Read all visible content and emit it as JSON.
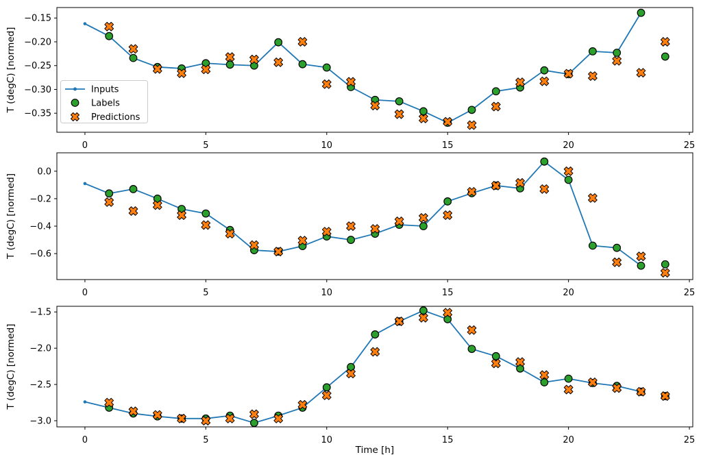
{
  "figure": {
    "background": "#ffffff",
    "xlabel": "Time [h]",
    "ylabel": "T (degC) [normed]",
    "colors": {
      "inputs_line": "#1f77b4",
      "labels_marker": "#2ca02c",
      "predictions_marker": "#ff7f0e",
      "marker_edge": "#000000",
      "spine": "#000000",
      "tick_text": "#000000",
      "legend_border": "#cccccc",
      "legend_fill": "#ffffff"
    },
    "legend": {
      "entries": [
        {
          "label": "Inputs",
          "glyph": "line-dot-glyph",
          "color": "#1f77b4"
        },
        {
          "label": "Labels",
          "glyph": "circle-glyph",
          "color": "#2ca02c"
        },
        {
          "label": "Predictions",
          "glyph": "x-glyph",
          "color": "#ff7f0e"
        }
      ]
    }
  },
  "chart_data": [
    {
      "type": "line",
      "title": "",
      "xlabel": "",
      "ylabel": "T (degC) [normed]",
      "xlim": [
        -1.16,
        25.14
      ],
      "ylim": [
        -0.39,
        -0.128
      ],
      "xticks": [
        0,
        5,
        10,
        15,
        20,
        25
      ],
      "xtick_labels": [
        "0",
        "5",
        "10",
        "15",
        "20",
        "25"
      ],
      "yticks": [
        -0.15,
        -0.2,
        -0.25,
        -0.3,
        -0.35
      ],
      "ytick_labels": [
        "−0.15",
        "−0.20",
        "−0.25",
        "−0.30",
        "−0.35"
      ],
      "grid": false,
      "legend": true,
      "legend_position": "lower-left",
      "series": [
        {
          "name": "Inputs",
          "marker": "dot-line",
          "color": "#1f77b4",
          "x": [
            0,
            1,
            2,
            3,
            4,
            5,
            6,
            7,
            8,
            9,
            10,
            11,
            12,
            13,
            14,
            15,
            16,
            17,
            18,
            19,
            20,
            21,
            22,
            23
          ],
          "y": [
            -0.162,
            -0.188,
            -0.234,
            -0.253,
            -0.256,
            -0.245,
            -0.248,
            -0.25,
            -0.201,
            -0.247,
            -0.254,
            -0.295,
            -0.322,
            -0.325,
            -0.346,
            -0.37,
            -0.343,
            -0.304,
            -0.296,
            -0.26,
            -0.268,
            -0.22,
            -0.223,
            -0.139
          ]
        },
        {
          "name": "Labels",
          "marker": "circle",
          "color": "#2ca02c",
          "x": [
            1,
            2,
            3,
            4,
            5,
            6,
            7,
            8,
            9,
            10,
            11,
            12,
            13,
            14,
            15,
            16,
            17,
            18,
            19,
            20,
            21,
            22,
            23,
            24
          ],
          "y": [
            -0.188,
            -0.234,
            -0.253,
            -0.256,
            -0.245,
            -0.248,
            -0.25,
            -0.201,
            -0.247,
            -0.254,
            -0.295,
            -0.322,
            -0.325,
            -0.346,
            -0.37,
            -0.343,
            -0.304,
            -0.296,
            -0.26,
            -0.268,
            -0.22,
            -0.223,
            -0.139,
            -0.231
          ]
        },
        {
          "name": "Predictions",
          "marker": "X",
          "color": "#ff7f0e",
          "x": [
            1,
            2,
            3,
            4,
            5,
            6,
            7,
            8,
            9,
            10,
            11,
            12,
            13,
            14,
            15,
            16,
            17,
            18,
            19,
            20,
            21,
            22,
            23,
            24
          ],
          "y": [
            -0.168,
            -0.215,
            -0.257,
            -0.266,
            -0.258,
            -0.232,
            -0.237,
            -0.243,
            -0.2,
            -0.289,
            -0.284,
            -0.334,
            -0.352,
            -0.361,
            -0.368,
            -0.375,
            -0.336,
            -0.285,
            -0.283,
            -0.267,
            -0.272,
            -0.24,
            -0.265,
            -0.2
          ]
        }
      ]
    },
    {
      "type": "line",
      "title": "",
      "xlabel": "",
      "ylabel": "T (degC) [normed]",
      "xlim": [
        -1.16,
        25.14
      ],
      "ylim": [
        -0.789,
        0.134
      ],
      "xticks": [
        0,
        5,
        10,
        15,
        20,
        25
      ],
      "xtick_labels": [
        "0",
        "5",
        "10",
        "15",
        "20",
        "25"
      ],
      "yticks": [
        0.0,
        -0.2,
        -0.4,
        -0.6
      ],
      "ytick_labels": [
        "0.0",
        "−0.2",
        "−0.4",
        "−0.6"
      ],
      "grid": false,
      "legend": false,
      "series": [
        {
          "name": "Inputs",
          "marker": "dot-line",
          "color": "#1f77b4",
          "x": [
            0,
            1,
            2,
            3,
            4,
            5,
            6,
            7,
            8,
            9,
            10,
            11,
            12,
            13,
            14,
            15,
            16,
            17,
            18,
            19,
            20,
            21,
            22,
            23
          ],
          "y": [
            -0.09,
            -0.162,
            -0.13,
            -0.2,
            -0.275,
            -0.308,
            -0.428,
            -0.575,
            -0.585,
            -0.545,
            -0.475,
            -0.5,
            -0.455,
            -0.39,
            -0.4,
            -0.22,
            -0.16,
            -0.105,
            -0.125,
            0.07,
            -0.063,
            -0.542,
            -0.558,
            -0.688
          ]
        },
        {
          "name": "Labels",
          "marker": "circle",
          "color": "#2ca02c",
          "x": [
            1,
            2,
            3,
            4,
            5,
            6,
            7,
            8,
            9,
            10,
            11,
            12,
            13,
            14,
            15,
            16,
            17,
            18,
            19,
            20,
            21,
            22,
            23,
            24
          ],
          "y": [
            -0.162,
            -0.13,
            -0.2,
            -0.275,
            -0.308,
            -0.428,
            -0.575,
            -0.585,
            -0.545,
            -0.475,
            -0.5,
            -0.455,
            -0.39,
            -0.4,
            -0.22,
            -0.16,
            -0.105,
            -0.125,
            0.07,
            -0.063,
            -0.542,
            -0.558,
            -0.688,
            -0.678
          ]
        },
        {
          "name": "Predictions",
          "marker": "X",
          "color": "#ff7f0e",
          "x": [
            1,
            2,
            3,
            4,
            5,
            6,
            7,
            8,
            9,
            10,
            11,
            12,
            13,
            14,
            15,
            16,
            17,
            18,
            19,
            20,
            21,
            22,
            23,
            24
          ],
          "y": [
            -0.225,
            -0.29,
            -0.247,
            -0.32,
            -0.392,
            -0.455,
            -0.538,
            -0.585,
            -0.505,
            -0.44,
            -0.4,
            -0.42,
            -0.365,
            -0.34,
            -0.32,
            -0.15,
            -0.105,
            -0.085,
            -0.13,
            0.0,
            -0.195,
            -0.663,
            -0.62,
            -0.74
          ]
        }
      ]
    },
    {
      "type": "line",
      "title": "",
      "xlabel": "Time [h]",
      "ylabel": "T (degC) [normed]",
      "xlim": [
        -1.16,
        25.14
      ],
      "ylim": [
        -3.085,
        -1.422
      ],
      "xticks": [
        0,
        5,
        10,
        15,
        20,
        25
      ],
      "xtick_labels": [
        "0",
        "5",
        "10",
        "15",
        "20",
        "25"
      ],
      "yticks": [
        -1.5,
        -2.0,
        -2.5,
        -3.0
      ],
      "ytick_labels": [
        "−1.5",
        "−2.0",
        "−2.5",
        "−3.0"
      ],
      "grid": false,
      "legend": false,
      "series": [
        {
          "name": "Inputs",
          "marker": "dot-line",
          "color": "#1f77b4",
          "x": [
            0,
            1,
            2,
            3,
            4,
            5,
            6,
            7,
            8,
            9,
            10,
            11,
            12,
            13,
            14,
            15,
            16,
            17,
            18,
            19,
            20,
            21,
            22,
            23
          ],
          "y": [
            -2.74,
            -2.82,
            -2.9,
            -2.94,
            -2.97,
            -2.97,
            -2.93,
            -3.03,
            -2.93,
            -2.82,
            -2.54,
            -2.26,
            -1.81,
            -1.63,
            -1.48,
            -1.6,
            -2.01,
            -2.11,
            -2.28,
            -2.47,
            -2.42,
            -2.48,
            -2.52,
            -2.6
          ]
        },
        {
          "name": "Labels",
          "marker": "circle",
          "color": "#2ca02c",
          "x": [
            1,
            2,
            3,
            4,
            5,
            6,
            7,
            8,
            9,
            10,
            11,
            12,
            13,
            14,
            15,
            16,
            17,
            18,
            19,
            20,
            21,
            22,
            23,
            24
          ],
          "y": [
            -2.82,
            -2.9,
            -2.94,
            -2.97,
            -2.97,
            -2.93,
            -3.03,
            -2.93,
            -2.82,
            -2.54,
            -2.26,
            -1.81,
            -1.63,
            -1.48,
            -1.6,
            -2.01,
            -2.11,
            -2.28,
            -2.47,
            -2.42,
            -2.48,
            -2.52,
            -2.6,
            -2.66
          ]
        },
        {
          "name": "Predictions",
          "marker": "X",
          "color": "#ff7f0e",
          "x": [
            1,
            2,
            3,
            4,
            5,
            6,
            7,
            8,
            9,
            10,
            11,
            12,
            13,
            14,
            15,
            16,
            17,
            18,
            19,
            20,
            21,
            22,
            23,
            24
          ],
          "y": [
            -2.75,
            -2.87,
            -2.92,
            -2.97,
            -3.0,
            -2.97,
            -2.91,
            -2.97,
            -2.78,
            -2.65,
            -2.35,
            -2.05,
            -1.63,
            -1.58,
            -1.51,
            -1.75,
            -2.21,
            -2.19,
            -2.37,
            -2.57,
            -2.47,
            -2.55,
            -2.6,
            -2.66
          ]
        }
      ]
    }
  ]
}
